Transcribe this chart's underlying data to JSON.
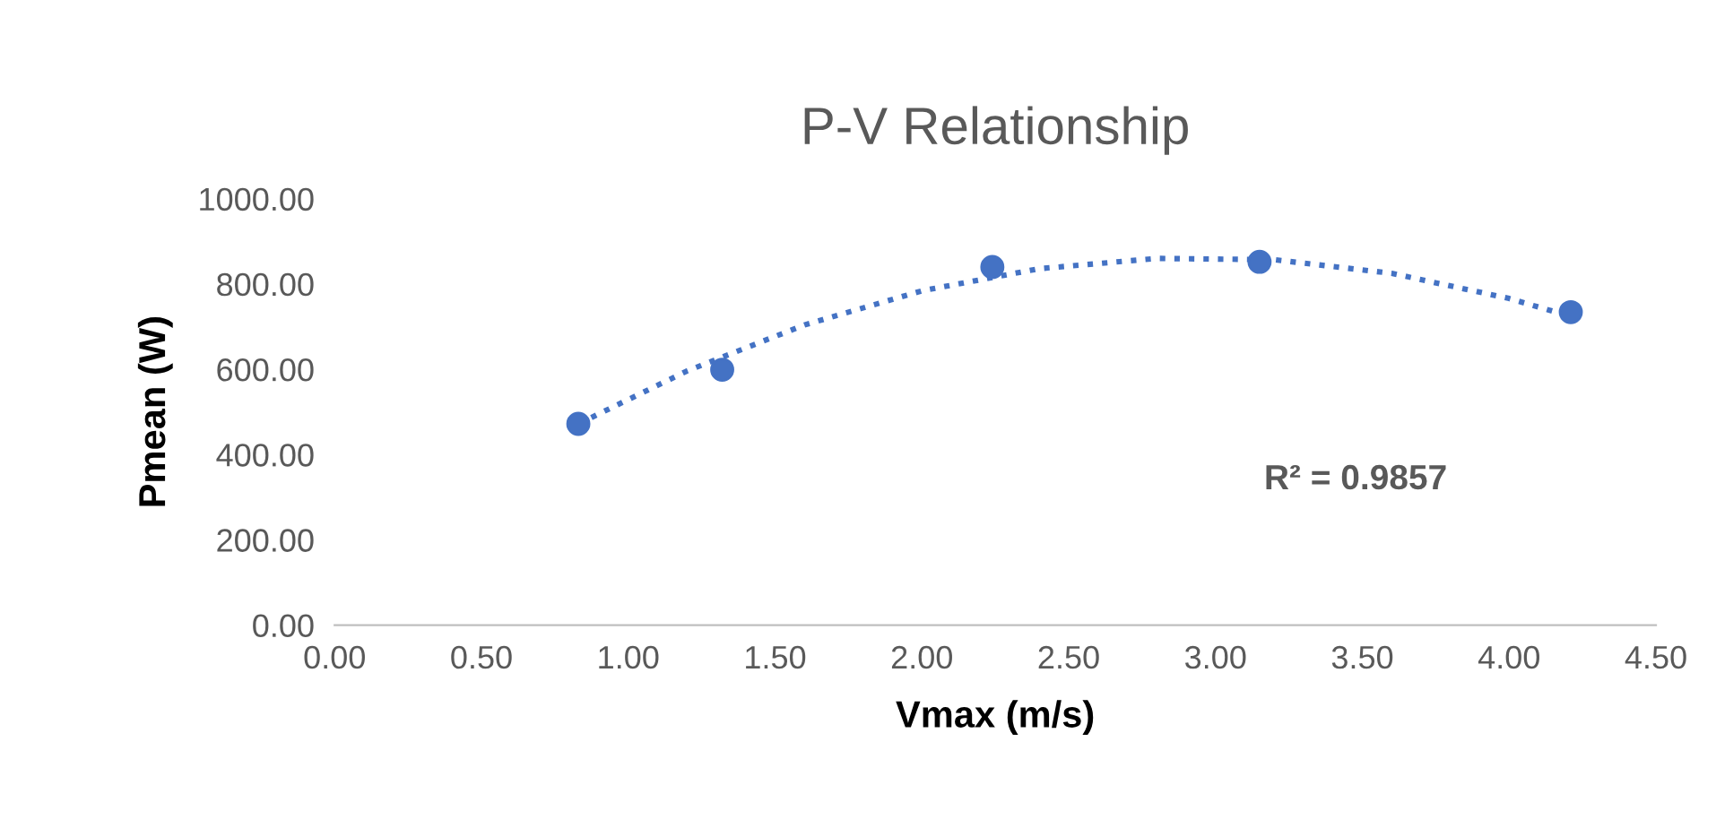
{
  "chart_data": {
    "type": "scatter",
    "title": "P-V Relationship",
    "xlabel": "Vmax (m/s)",
    "ylabel": "Pmean (W)",
    "series": [
      {
        "color": "#4472c4",
        "marker": "circle",
        "x": [
          0.83,
          1.32,
          2.24,
          3.15,
          4.21
        ],
        "values": [
          472,
          599,
          840,
          852,
          734
        ]
      },
      {
        "type": "line",
        "color": "#4472c4",
        "line_style": "dotted",
        "marker": "none",
        "x": [
          0.83,
          1.2,
          1.6,
          2.0,
          2.4,
          2.8,
          3.2,
          3.6,
          4.0,
          4.21
        ],
        "values": [
          472,
          596,
          704,
          784,
          836,
          860,
          857,
          825,
          766,
          724
        ]
      }
    ],
    "xlim": [
      0,
      4.5
    ],
    "xticks": [
      {
        "value": 0,
        "label": "0.00"
      },
      {
        "value": 0.5,
        "label": "0.50"
      },
      {
        "value": 1,
        "label": "1.00"
      },
      {
        "value": 1.5,
        "label": "1.50"
      },
      {
        "value": 2,
        "label": "2.00"
      },
      {
        "value": 2.5,
        "label": "2.50"
      },
      {
        "value": 3,
        "label": "3.00"
      },
      {
        "value": 3.5,
        "label": "3.50"
      },
      {
        "value": 4,
        "label": "4.00"
      },
      {
        "value": 4.5,
        "label": "4.50"
      }
    ],
    "ylim": [
      0,
      1000
    ],
    "yticks": [
      {
        "value": 0,
        "label": "0.00"
      },
      {
        "value": 200,
        "label": "200.00"
      },
      {
        "value": 400,
        "label": "400.00"
      },
      {
        "value": 600,
        "label": "600.00"
      },
      {
        "value": 800,
        "label": "800.00"
      },
      {
        "value": 1000,
        "label": "1000.00"
      }
    ],
    "annotations": [
      "R² = 0.9857"
    ],
    "grid": false,
    "legend": false
  }
}
